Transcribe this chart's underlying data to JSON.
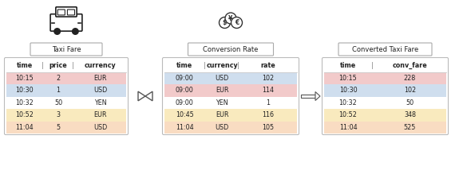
{
  "taxi_fare": {
    "title": "Taxi Fare",
    "headers": [
      "time",
      "price",
      "currency"
    ],
    "rows": [
      [
        "10:15",
        "2",
        "EUR"
      ],
      [
        "10:30",
        "1",
        "USD"
      ],
      [
        "10:32",
        "50",
        "YEN"
      ],
      [
        "10:52",
        "3",
        "EUR"
      ],
      [
        "11:04",
        "5",
        "USD"
      ]
    ],
    "row_colors": [
      "#E8A0A0",
      "#A8C4E0",
      "#FFFFFF",
      "#F5D98A",
      "#F5C090"
    ]
  },
  "conversion_rate": {
    "title": "Conversion Rate",
    "headers": [
      "time",
      "currency",
      "rate"
    ],
    "rows": [
      [
        "09:00",
        "USD",
        "102"
      ],
      [
        "09:00",
        "EUR",
        "114"
      ],
      [
        "09:00",
        "YEN",
        "1"
      ],
      [
        "10:45",
        "EUR",
        "116"
      ],
      [
        "11:04",
        "USD",
        "105"
      ]
    ],
    "row_colors": [
      "#A8C4E0",
      "#E8A0A0",
      "#FFFFFF",
      "#F5D98A",
      "#F5C090"
    ]
  },
  "converted_taxi_fare": {
    "title": "Converted Taxi Fare",
    "headers": [
      "time",
      "conv_fare"
    ],
    "rows": [
      [
        "10:15",
        "228"
      ],
      [
        "10:30",
        "102"
      ],
      [
        "10:32",
        "50"
      ],
      [
        "10:52",
        "348"
      ],
      [
        "11:04",
        "525"
      ]
    ],
    "row_colors": [
      "#E8A0A0",
      "#A8C4E0",
      "#FFFFFF",
      "#F5D98A",
      "#F5C090"
    ]
  },
  "bg_color": "#FFFFFF"
}
